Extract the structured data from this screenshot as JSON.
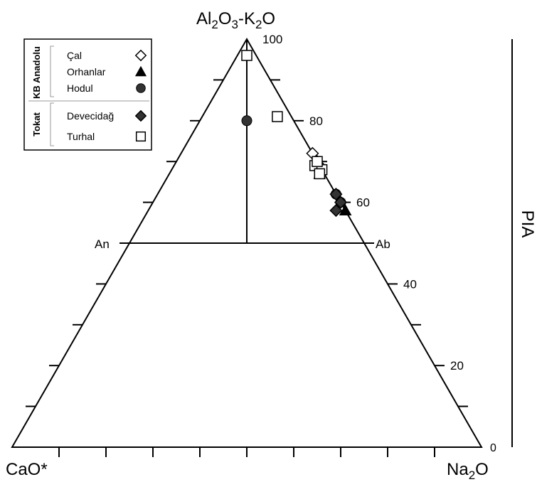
{
  "chart_data": {
    "type": "scatter",
    "subtype": "ternary",
    "vertices": {
      "top": {
        "main": "Al",
        "sub1": "2",
        "mid": "O",
        "sub2": "3",
        "tail": "-K",
        "sub3": "2",
        "end": "O"
      },
      "left": "CaO*",
      "right": {
        "main": "Na",
        "sub": "2",
        "end": "O"
      }
    },
    "reference_labels": {
      "an": "An",
      "ab": "Ab"
    },
    "pia_axis": {
      "label": "PIA",
      "range": [
        0,
        100
      ],
      "ticks": [
        "0",
        "20",
        "40",
        "60",
        "80",
        "100"
      ]
    },
    "legend": {
      "placement": "top-left",
      "groups": [
        {
          "name": "KB Anadolu",
          "items": [
            {
              "label": "Çal",
              "marker": "diamond-open"
            },
            {
              "label": "Orhanlar",
              "marker": "triangle-filled"
            },
            {
              "label": "Hodul",
              "marker": "circle-filled"
            }
          ]
        },
        {
          "name": "Tokat",
          "items": [
            {
              "label": "Devecidağ",
              "marker": "diamond-filled"
            },
            {
              "label": "Turhal",
              "marker": "square-open"
            }
          ]
        }
      ]
    },
    "series": [
      {
        "name": "Çal",
        "marker": "diamond-open",
        "points": [
          {
            "a": 72,
            "b": 0,
            "n": 28
          },
          {
            "a": 70,
            "b": 0,
            "n": 30
          }
        ]
      },
      {
        "name": "Orhanlar",
        "marker": "triangle-filled",
        "points": [
          {
            "a": 67,
            "b": 1,
            "n": 32
          },
          {
            "a": 58,
            "b": 0,
            "n": 42
          }
        ]
      },
      {
        "name": "Hodul",
        "marker": "circle-filled",
        "points": [
          {
            "a": 80,
            "b": 10,
            "n": 10
          },
          {
            "a": 70,
            "b": 0,
            "n": 30
          },
          {
            "a": 68,
            "b": 0,
            "n": 32
          },
          {
            "a": 62,
            "b": 0,
            "n": 38
          },
          {
            "a": 60,
            "b": 0,
            "n": 40
          }
        ]
      },
      {
        "name": "Devecidağ",
        "marker": "diamond-filled",
        "points": [
          {
            "a": 69,
            "b": 0,
            "n": 31
          },
          {
            "a": 58,
            "b": 2,
            "n": 40
          },
          {
            "a": 60,
            "b": 0,
            "n": 40
          },
          {
            "a": 62,
            "b": 0,
            "n": 38
          }
        ]
      },
      {
        "name": "Turhal",
        "marker": "square-open",
        "points": [
          {
            "a": 96,
            "b": 2,
            "n": 2
          },
          {
            "a": 81,
            "b": 3,
            "n": 16
          },
          {
            "a": 69,
            "b": 1,
            "n": 30
          },
          {
            "a": 68,
            "b": 0,
            "n": 32
          },
          {
            "a": 67,
            "b": 1,
            "n": 32
          },
          {
            "a": 70,
            "b": 0,
            "n": 30
          }
        ]
      }
    ],
    "colors": {
      "line": "#000000",
      "marker_fill": "#333333",
      "background": "#ffffff"
    }
  }
}
